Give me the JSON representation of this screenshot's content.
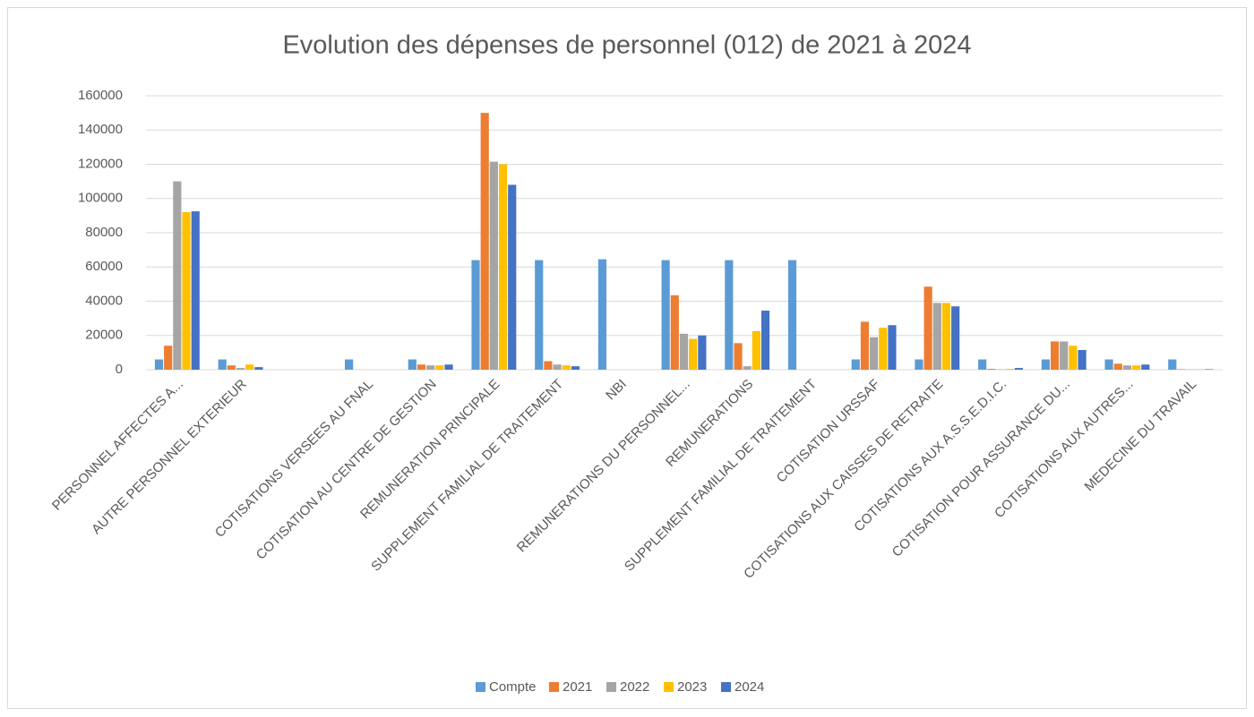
{
  "chart_data": {
    "type": "bar",
    "title": "Evolution des dépenses de personnel (012) de 2021 à 2024",
    "categories": [
      "PERSONNEL AFFECTES A...",
      "AUTRE PERSONNEL EXTERIEUR",
      null,
      "COTISATIONS VERSEES AU FNAL",
      "COTISATION AU CENTRE DE GESTION",
      "REMUNERATION PRINCIPALE",
      "SUPPLEMENT FAMILIAL DE TRAITEMENT",
      "NBI",
      "REMUNERATIONS DU PERSONNEL...",
      "REMUNERATIONS",
      "SUPPLEMENT FAMILIAL DE TRAITEMENT",
      "COTISATION URSSAF",
      "COTISATIONS AUX CAISSES DE RETRAITE",
      "COTISATIONS AUX A.S.S.E.D.I.C.",
      "COTISATION POUR ASSURANCE DU...",
      "COTISATIONS AUX AUTRES...",
      "MEDECINE DU TRAVAIL"
    ],
    "series": [
      {
        "name": "Compte",
        "color": "#5b9bd5",
        "values": [
          6000,
          6000,
          null,
          6000,
          6000,
          64000,
          64000,
          64500,
          64000,
          64000,
          64000,
          6000,
          6000,
          6000,
          6000,
          6000,
          6000
        ]
      },
      {
        "name": "2021",
        "color": "#ed7d31",
        "values": [
          14000,
          2500,
          null,
          0,
          3000,
          150000,
          5000,
          0,
          43500,
          15500,
          0,
          28000,
          48500,
          500,
          16500,
          3500,
          300
        ]
      },
      {
        "name": "2022",
        "color": "#a5a5a5",
        "values": [
          110000,
          1000,
          null,
          0,
          2500,
          121500,
          3000,
          0,
          21000,
          2000,
          0,
          19000,
          39000,
          200,
          16500,
          2500,
          200
        ]
      },
      {
        "name": "2023",
        "color": "#ffc000",
        "values": [
          92000,
          3000,
          null,
          0,
          2500,
          120000,
          2500,
          0,
          18000,
          22500,
          0,
          24500,
          39000,
          500,
          14000,
          2500,
          300
        ]
      },
      {
        "name": "2024",
        "color": "#4472c4",
        "values": [
          92500,
          1500,
          null,
          0,
          3000,
          108000,
          2000,
          0,
          20000,
          34500,
          0,
          26000,
          37000,
          1000,
          11500,
          3000,
          300
        ]
      }
    ],
    "ylim": [
      0,
      160000
    ],
    "yticks": [
      0,
      20000,
      40000,
      60000,
      80000,
      100000,
      120000,
      140000,
      160000
    ],
    "grid": true,
    "legend": "bottom"
  }
}
